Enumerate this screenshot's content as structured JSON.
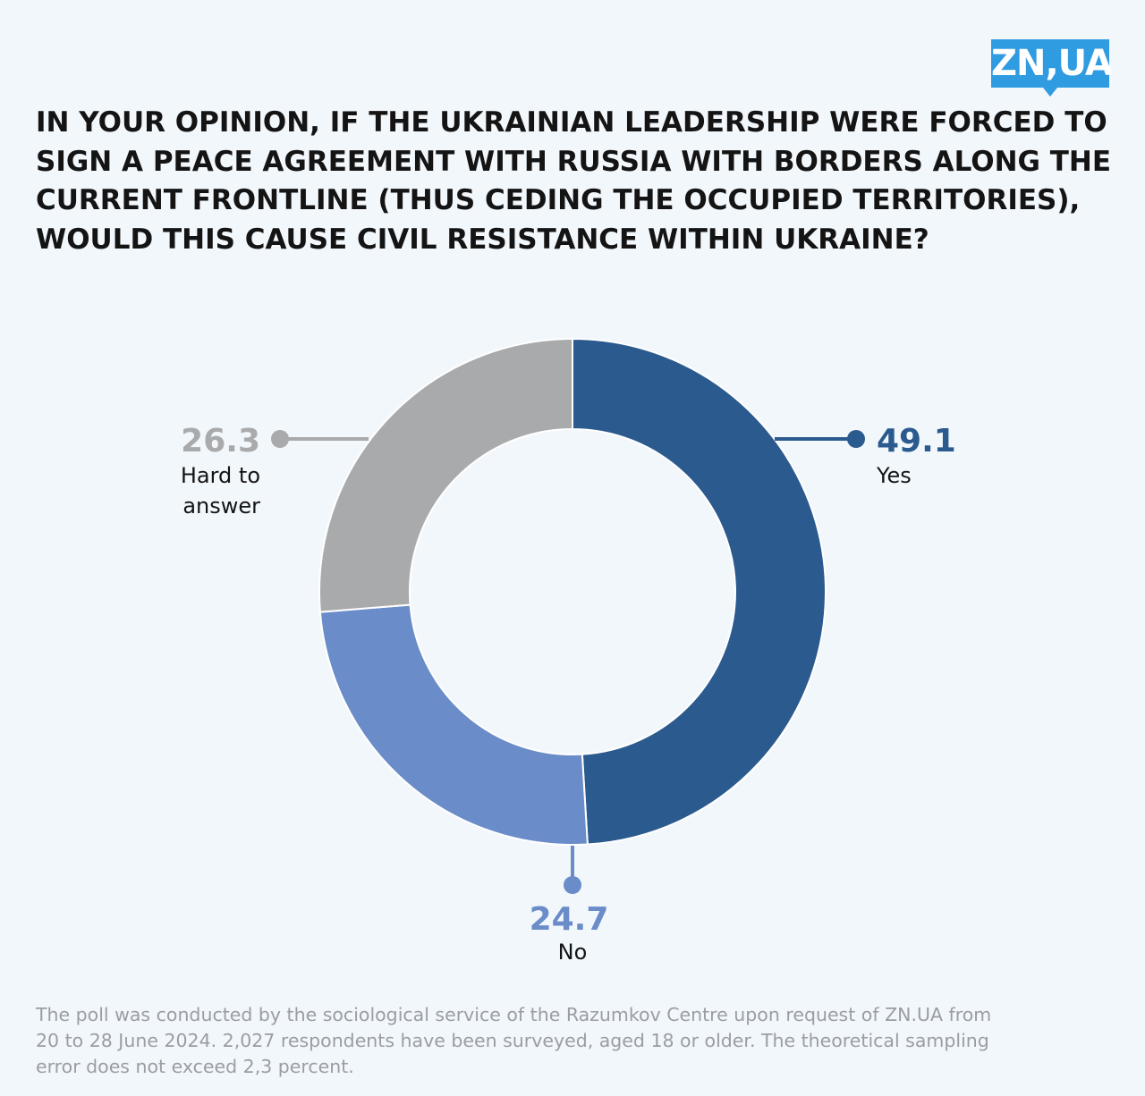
{
  "logo": {
    "text": "ZN,UA",
    "color": "#2f9be0"
  },
  "title": "IN YOUR OPINION, IF THE UKRAINIAN LEADERSHIP WERE FORCED TO SIGN A PEACE AGREEMENT WITH RUSSIA WITH BORDERS ALONG THE CURRENT FRONTLINE (THUS CEDING THE OCCUPIED TERRITORIES), WOULD THIS CAUSE CIVIL RESISTANCE WITHIN UKRAINE?",
  "chart_data": {
    "type": "pie",
    "title": "IN YOUR OPINION, IF THE UKRAINIAN LEADERSHIP WERE FORCED TO SIGN A PEACE AGREEMENT WITH RUSSIA WITH BORDERS ALONG THE CURRENT FRONTLINE (THUS CEDING THE OCCUPIED TERRITORIES), WOULD THIS CAUSE CIVIL RESISTANCE WITHIN UKRAINE?",
    "style": "donut",
    "slices": [
      {
        "key": "yes",
        "label": "Yes",
        "value": 49.1,
        "value_text": "49.1",
        "color": "#2b5a8e"
      },
      {
        "key": "no",
        "label": "No",
        "value": 24.7,
        "value_text": "24.7",
        "color": "#6a8cc8"
      },
      {
        "key": "hard",
        "label_lines": [
          "Hard to",
          "answer"
        ],
        "value": 26.3,
        "value_text": "26.3",
        "color": "#a9aaab"
      }
    ]
  },
  "footnote": "The poll was conducted by the sociological service of the Razumkov Centre upon request of ZN.UA from 20 to 28 June 2024. 2,027 respondents have been surveyed, aged 18 or older. The theoretical sampling error does not exceed 2,3 percent."
}
